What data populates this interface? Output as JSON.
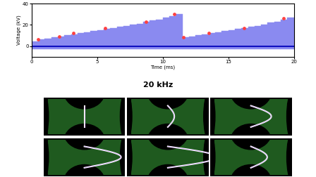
{
  "chart_data": {
    "type": "bar",
    "x_label": "Time (ms)",
    "y_label": "Voltage (kV)",
    "annotation": "20 kHz",
    "x": [
      0,
      0.5,
      1,
      1.5,
      2,
      2.5,
      3,
      3.5,
      4,
      4.5,
      5,
      5.5,
      6,
      6.5,
      7,
      7.5,
      8,
      8.5,
      9,
      9.5,
      10,
      10.5,
      11,
      11.5,
      12,
      12.5,
      13,
      13.5,
      14,
      14.5,
      15,
      15.5,
      16,
      16.5,
      17,
      17.5,
      18,
      18.5,
      19,
      19.5
    ],
    "series": [
      {
        "type": "bar",
        "color": "#8a8af0",
        "values": [
          4,
          6,
          7,
          8,
          9,
          10,
          11,
          12,
          13,
          14,
          15,
          16,
          17,
          18,
          19,
          20,
          21,
          23,
          24,
          25,
          27,
          28,
          30,
          8,
          9,
          10,
          11,
          12,
          13,
          14,
          15,
          16,
          17,
          18,
          19,
          20,
          22,
          23,
          25,
          27
        ]
      },
      {
        "type": "bar",
        "color": "#8a8af0",
        "values": [
          -3,
          -3,
          -3,
          -3,
          -3,
          -3,
          -3,
          -3,
          -3,
          -3,
          -3,
          -3,
          -3,
          -3,
          -3,
          -3,
          -3,
          -3,
          -3,
          -3,
          -3,
          -3,
          -3,
          -3,
          -3,
          -3,
          -3,
          -3,
          -3,
          -3,
          -3,
          -3,
          -3,
          -3,
          -3,
          -3,
          -3,
          -3,
          -3,
          -3
        ]
      },
      {
        "type": "scatter",
        "color": "#ff4040",
        "marker": "o",
        "x": [
          0.5,
          2.1,
          3.2,
          5.6,
          8.7,
          10.9,
          11.6,
          13.5,
          16.2,
          19.2
        ],
        "values": [
          6,
          9,
          12,
          17,
          23,
          30,
          8,
          12,
          17,
          26
        ]
      }
    ],
    "xlim": [
      0,
      20
    ],
    "xticks": [
      0,
      5,
      10,
      15,
      20
    ],
    "ylim": [
      -10,
      40
    ],
    "yticks": [
      0,
      20,
      40
    ]
  }
}
